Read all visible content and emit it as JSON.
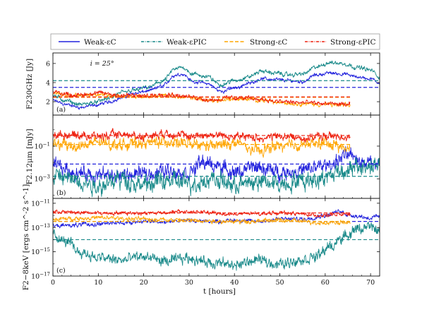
{
  "chart_data": {
    "type": "line",
    "legend": {
      "placement": "top",
      "entries": [
        {
          "name": "Weak-εC",
          "color": "#2222dd",
          "dash": "solid"
        },
        {
          "name": "Weak-εPIC",
          "color": "#1a8a8a",
          "dash": "dashdot"
        },
        {
          "name": "Strong-εC",
          "color": "#ffa500",
          "dash": "dashed"
        },
        {
          "name": "Strong-εPIC",
          "color": "#ee2211",
          "dash": "dashdot"
        }
      ]
    },
    "xlabel": "t [hours]",
    "xlim": [
      0,
      72
    ],
    "xticks": [
      0,
      10,
      20,
      30,
      40,
      50,
      60,
      70
    ],
    "panels": [
      {
        "label": "(a)",
        "annotation": "i = 25°",
        "ylabel": "F230GHz [Jy]",
        "scale": "linear",
        "ylim": [
          0.6,
          7.1
        ],
        "yticks": [
          2,
          4,
          6
        ],
        "ytick_labels": [
          "2",
          "4",
          "6"
        ],
        "series": [
          {
            "name": "Weak-εC",
            "t_end": 72,
            "keys": [
              [
                0,
                2.1
              ],
              [
                3,
                1.7
              ],
              [
                6,
                1.4
              ],
              [
                9,
                1.6
              ],
              [
                12,
                1.9
              ],
              [
                15,
                2.4
              ],
              [
                18,
                2.9
              ],
              [
                21,
                3.1
              ],
              [
                24,
                3.6
              ],
              [
                27,
                4.8
              ],
              [
                28.5,
                4.9
              ],
              [
                31,
                4.1
              ],
              [
                34,
                3.9
              ],
              [
                37,
                3.1
              ],
              [
                40,
                3.4
              ],
              [
                43,
                3.9
              ],
              [
                46,
                4.4
              ],
              [
                49,
                4.3
              ],
              [
                52,
                4.2
              ],
              [
                55,
                4.1
              ],
              [
                58,
                4.8
              ],
              [
                61,
                5.0
              ],
              [
                64,
                4.9
              ],
              [
                67,
                4.6
              ],
              [
                70,
                4.4
              ],
              [
                72,
                4.0
              ]
            ],
            "noise": 0.18,
            "mean": 3.5
          },
          {
            "name": "Weak-εPIC",
            "t_end": 72,
            "keys": [
              [
                0,
                2.6
              ],
              [
                3,
                2.1
              ],
              [
                6,
                1.7
              ],
              [
                9,
                1.9
              ],
              [
                12,
                2.3
              ],
              [
                15,
                2.9
              ],
              [
                18,
                3.2
              ],
              [
                21,
                3.5
              ],
              [
                24,
                4.1
              ],
              [
                27,
                5.4
              ],
              [
                28.5,
                5.6
              ],
              [
                31,
                4.9
              ],
              [
                34,
                4.6
              ],
              [
                37,
                3.8
              ],
              [
                40,
                4.2
              ],
              [
                43,
                4.6
              ],
              [
                46,
                5.2
              ],
              [
                49,
                5.0
              ],
              [
                52,
                4.8
              ],
              [
                55,
                4.9
              ],
              [
                58,
                5.6
              ],
              [
                61,
                6.1
              ],
              [
                64,
                6.0
              ],
              [
                67,
                5.6
              ],
              [
                70,
                5.3
              ],
              [
                72,
                4.6
              ]
            ],
            "noise": 0.22,
            "mean": 4.2
          },
          {
            "name": "Strong-εC",
            "t_end": 65.5,
            "keys": [
              [
                0,
                2.9
              ],
              [
                5,
                2.6
              ],
              [
                10,
                2.8
              ],
              [
                15,
                2.6
              ],
              [
                20,
                2.5
              ],
              [
                25,
                2.7
              ],
              [
                30,
                2.4
              ],
              [
                35,
                2.1
              ],
              [
                40,
                2.3
              ],
              [
                45,
                2.2
              ],
              [
                50,
                1.9
              ],
              [
                55,
                1.8
              ],
              [
                60,
                1.7
              ],
              [
                65.5,
                1.6
              ]
            ],
            "noise": 0.22,
            "mean": 2.45
          },
          {
            "name": "Strong-εPIC",
            "t_end": 65.5,
            "keys": [
              [
                0,
                3.0
              ],
              [
                5,
                2.7
              ],
              [
                10,
                2.9
              ],
              [
                15,
                2.7
              ],
              [
                20,
                2.6
              ],
              [
                25,
                2.8
              ],
              [
                30,
                2.5
              ],
              [
                35,
                2.2
              ],
              [
                40,
                2.4
              ],
              [
                45,
                2.3
              ],
              [
                50,
                2.0
              ],
              [
                55,
                1.9
              ],
              [
                60,
                1.8
              ],
              [
                65.5,
                1.7
              ]
            ],
            "noise": 0.24,
            "mean": 2.5
          }
        ]
      },
      {
        "label": "(b)",
        "ylabel": "F2.12μm [mJy]",
        "scale": "log",
        "ylim": [
          -4.2,
          0.9
        ],
        "yticks": [
          -1,
          -3
        ],
        "ytick_labels": [
          "10^-1",
          "10^-3"
        ],
        "series": [
          {
            "name": "Weak-εC",
            "t_end": 72,
            "keys": [
              [
                0,
                -2.2
              ],
              [
                5,
                -2.6
              ],
              [
                10,
                -2.8
              ],
              [
                15,
                -2.8
              ],
              [
                20,
                -2.7
              ],
              [
                25,
                -2.5
              ],
              [
                30,
                -2.6
              ],
              [
                33,
                -2.0
              ],
              [
                36,
                -2.2
              ],
              [
                40,
                -2.6
              ],
              [
                45,
                -2.3
              ],
              [
                50,
                -2.6
              ],
              [
                55,
                -2.5
              ],
              [
                60,
                -2.2
              ],
              [
                65,
                -1.6
              ],
              [
                70,
                -2.0
              ],
              [
                72,
                -2.1
              ]
            ],
            "noise": 0.45,
            "mean": -2.1
          },
          {
            "name": "Weak-εPIC",
            "t_end": 72,
            "keys": [
              [
                0,
                -2.8
              ],
              [
                5,
                -3.1
              ],
              [
                10,
                -3.4
              ],
              [
                15,
                -3.0
              ],
              [
                20,
                -3.4
              ],
              [
                25,
                -3.1
              ],
              [
                30,
                -3.3
              ],
              [
                35,
                -3.0
              ],
              [
                40,
                -3.4
              ],
              [
                45,
                -3.2
              ],
              [
                50,
                -3.3
              ],
              [
                55,
                -3.1
              ],
              [
                60,
                -2.9
              ],
              [
                63,
                -2.5
              ],
              [
                66,
                -2.4
              ],
              [
                70,
                -2.2
              ],
              [
                72,
                -2.1
              ]
            ],
            "noise": 0.55,
            "mean": -2.85
          },
          {
            "name": "Strong-εC",
            "t_end": 65.5,
            "keys": [
              [
                0,
                -0.9
              ],
              [
                5,
                -1.0
              ],
              [
                10,
                -0.8
              ],
              [
                15,
                -0.9
              ],
              [
                20,
                -0.8
              ],
              [
                25,
                -0.7
              ],
              [
                30,
                -0.9
              ],
              [
                35,
                -1.0
              ],
              [
                40,
                -0.8
              ],
              [
                45,
                -1.3
              ],
              [
                50,
                -1.0
              ],
              [
                55,
                -0.9
              ],
              [
                60,
                -0.8
              ],
              [
                65.5,
                -1.2
              ]
            ],
            "noise": 0.35,
            "mean": -0.9
          },
          {
            "name": "Strong-εPIC",
            "t_end": 65.5,
            "keys": [
              [
                0,
                -0.3
              ],
              [
                5,
                -0.3
              ],
              [
                10,
                -0.4
              ],
              [
                15,
                -0.3
              ],
              [
                20,
                -0.4
              ],
              [
                25,
                -0.2
              ],
              [
                30,
                -0.4
              ],
              [
                35,
                -0.3
              ],
              [
                40,
                -0.4
              ],
              [
                45,
                -0.5
              ],
              [
                50,
                -0.4
              ],
              [
                55,
                -0.5
              ],
              [
                60,
                -0.4
              ],
              [
                65.5,
                -0.4
              ]
            ],
            "noise": 0.25,
            "mean": -0.35
          }
        ]
      },
      {
        "label": "(c)",
        "ylabel": "F2−8keV [ergs cm^-2 s^-1]",
        "scale": "log",
        "ylim": [
          -17,
          -10.6
        ],
        "yticks": [
          -11,
          -13,
          -15,
          -17
        ],
        "ytick_labels": [
          "10^-11",
          "10^-13",
          "10^-15",
          "10^-17"
        ],
        "series": [
          {
            "name": "Weak-εC",
            "t_end": 72,
            "keys": [
              [
                0,
                -12.9
              ],
              [
                5,
                -12.8
              ],
              [
                10,
                -12.7
              ],
              [
                15,
                -12.6
              ],
              [
                20,
                -12.5
              ],
              [
                25,
                -12.5
              ],
              [
                30,
                -12.4
              ],
              [
                35,
                -12.5
              ],
              [
                40,
                -12.4
              ],
              [
                45,
                -12.5
              ],
              [
                50,
                -12.3
              ],
              [
                55,
                -12.3
              ],
              [
                60,
                -12.0
              ],
              [
                63,
                -11.7
              ],
              [
                66,
                -12.0
              ],
              [
                70,
                -12.2
              ],
              [
                72,
                -12.1
              ]
            ],
            "noise": 0.18,
            "mean": -12.5
          },
          {
            "name": "Weak-εPIC",
            "t_end": 72,
            "keys": [
              [
                0,
                -13.6
              ],
              [
                3,
                -14.2
              ],
              [
                6,
                -15.0
              ],
              [
                10,
                -15.5
              ],
              [
                15,
                -15.7
              ],
              [
                20,
                -15.4
              ],
              [
                25,
                -15.8
              ],
              [
                30,
                -15.5
              ],
              [
                35,
                -15.9
              ],
              [
                40,
                -16.1
              ],
              [
                45,
                -15.7
              ],
              [
                50,
                -16.0
              ],
              [
                55,
                -15.6
              ],
              [
                58,
                -15.4
              ],
              [
                61,
                -14.6
              ],
              [
                64,
                -13.8
              ],
              [
                67,
                -13.1
              ],
              [
                70,
                -13.0
              ],
              [
                72,
                -13.3
              ]
            ],
            "noise": 0.45,
            "mean": -14.0
          },
          {
            "name": "Strong-εC",
            "t_end": 65.5,
            "keys": [
              [
                0,
                -12.3
              ],
              [
                10,
                -12.2
              ],
              [
                20,
                -12.3
              ],
              [
                30,
                -12.4
              ],
              [
                40,
                -12.5
              ],
              [
                50,
                -12.4
              ],
              [
                60,
                -12.6
              ],
              [
                65.5,
                -12.6
              ]
            ],
            "noise": 0.18,
            "mean": -12.5
          },
          {
            "name": "Strong-εPIC",
            "t_end": 65.5,
            "keys": [
              [
                0,
                -11.7
              ],
              [
                10,
                -11.8
              ],
              [
                20,
                -11.8
              ],
              [
                30,
                -11.7
              ],
              [
                40,
                -11.9
              ],
              [
                50,
                -11.8
              ],
              [
                60,
                -12.0
              ],
              [
                65.5,
                -11.9
              ]
            ],
            "noise": 0.16,
            "mean": -11.8
          }
        ]
      }
    ]
  }
}
